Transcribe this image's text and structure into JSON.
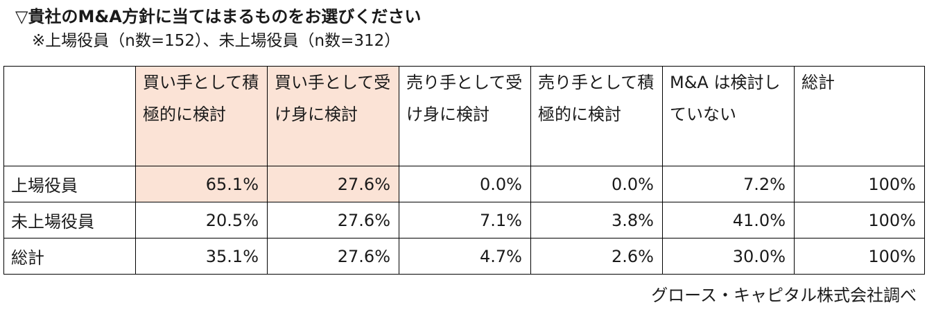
{
  "title": "▽貴社のM&A方針に当てはまるものをお選びください",
  "subtitle": "※上場役員（n数=152）、未上場役員（n数=312）",
  "source": "グロース・キャピタル株式会社調べ",
  "colors": {
    "highlight": "#fbe3d6",
    "border": "#000000"
  },
  "chart_data": {
    "type": "table",
    "columns": [
      "買い手として積極的に検討",
      "買い手として受け身に検討",
      "売り手として受け身に検討",
      "売り手として積極的に検討",
      "M&A は検討していない",
      "総計"
    ],
    "rows": [
      {
        "label": "上場役員",
        "values": [
          "65.1%",
          "27.6%",
          "0.0%",
          "0.0%",
          "7.2%",
          "100%"
        ]
      },
      {
        "label": "未上場役員",
        "values": [
          "20.5%",
          "27.6%",
          "7.1%",
          "3.8%",
          "41.0%",
          "100%"
        ]
      },
      {
        "label": "総計",
        "values": [
          "35.1%",
          "27.6%",
          "4.7%",
          "2.6%",
          "30.0%",
          "100%"
        ]
      }
    ],
    "highlighted_columns": [
      0,
      1
    ],
    "bold_cells": [
      [
        0,
        0
      ],
      [
        0,
        1
      ]
    ]
  }
}
